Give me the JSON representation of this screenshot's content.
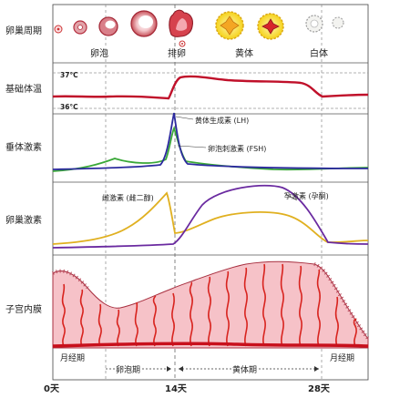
{
  "row_labels": {
    "ovarian_cycle": "卵巢周期",
    "basal_temp": "基础体温",
    "pituitary": "垂体激素",
    "ovarian_hormone": "卵巢激素",
    "endometrium": "子宫内膜"
  },
  "ovarian_phases": {
    "follicle": "卵泡",
    "ovulation": "排卵",
    "corpus_luteum": "黄体",
    "corpus_albicans": "白体"
  },
  "temperature": {
    "high": "37°C",
    "low": "36°C"
  },
  "pituitary_labels": {
    "lh": "黄体生成素 (LH)",
    "fsh": "卵泡刺激素 (FSH)"
  },
  "ovarian_labels": {
    "estrogen": "雌激素 (雌二醇)",
    "progesterone": "孕激素 (孕酮)"
  },
  "phases": {
    "menses_start": "月经期",
    "follicular": "卵泡期",
    "luteal": "黄体期",
    "menses_end": "月经期"
  },
  "days": {
    "d0": "0天",
    "d14": "14天",
    "d28": "28天"
  },
  "colors": {
    "temp": "#c0102a",
    "lh": "#2c2a9e",
    "fsh": "#3aa838",
    "estrogen": "#e0b020",
    "progesterone": "#6a2aa0",
    "endometrium": "#f6c2c8",
    "vessel": "#d8231e"
  }
}
